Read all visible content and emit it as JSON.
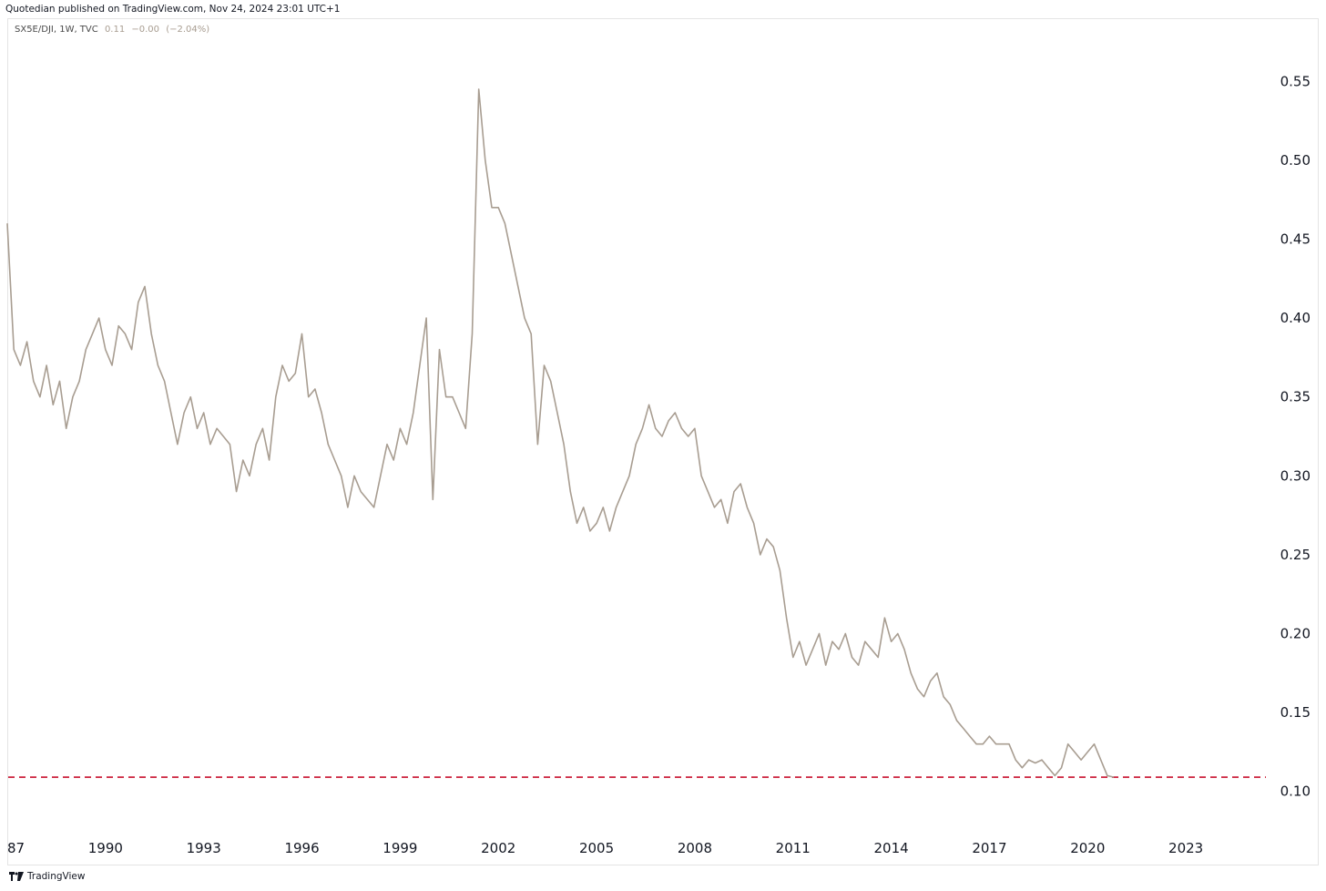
{
  "header": {
    "attribution": "Quotedian published on TradingView.com, Nov 24, 2024 23:01 UTC+1"
  },
  "legend": {
    "symbol": "SX5E/DJI, 1W, TVC",
    "last": "0.11",
    "change": "−0.00",
    "change_pct": "(−2.04%)"
  },
  "footer": {
    "brand": "TradingView"
  },
  "colors": {
    "line": "#a89d91",
    "support": "#c8102e",
    "text": "#131722"
  },
  "chart_data": {
    "type": "line",
    "title": "",
    "xlabel": "",
    "ylabel": "",
    "x_tick_labels": [
      "87",
      "1990",
      "1993",
      "1996",
      "1999",
      "2002",
      "2005",
      "2008",
      "2011",
      "2014",
      "2017",
      "2020",
      "2023"
    ],
    "y_tick_labels": [
      "0.55",
      "0.50",
      "0.45",
      "0.40",
      "0.35",
      "0.30",
      "0.25",
      "0.20",
      "0.15",
      "0.10"
    ],
    "xlim": [
      1987.0,
      2025.5
    ],
    "ylim": [
      0.075,
      0.59
    ],
    "grid": false,
    "legend_placement": "top-left",
    "series": [
      {
        "values": [
          [
            1987.0,
            0.46
          ],
          [
            1987.2,
            0.38
          ],
          [
            1987.4,
            0.37
          ],
          [
            1987.6,
            0.385
          ],
          [
            1987.8,
            0.36
          ],
          [
            1988.0,
            0.35
          ],
          [
            1988.2,
            0.37
          ],
          [
            1988.4,
            0.345
          ],
          [
            1988.6,
            0.36
          ],
          [
            1988.8,
            0.33
          ],
          [
            1989.0,
            0.35
          ],
          [
            1989.2,
            0.36
          ],
          [
            1989.4,
            0.38
          ],
          [
            1989.6,
            0.39
          ],
          [
            1989.8,
            0.4
          ],
          [
            1990.0,
            0.38
          ],
          [
            1990.2,
            0.37
          ],
          [
            1990.4,
            0.395
          ],
          [
            1990.6,
            0.39
          ],
          [
            1990.8,
            0.38
          ],
          [
            1991.0,
            0.41
          ],
          [
            1991.2,
            0.42
          ],
          [
            1991.4,
            0.39
          ],
          [
            1991.6,
            0.37
          ],
          [
            1991.8,
            0.36
          ],
          [
            1992.0,
            0.34
          ],
          [
            1992.2,
            0.32
          ],
          [
            1992.4,
            0.34
          ],
          [
            1992.6,
            0.35
          ],
          [
            1992.8,
            0.33
          ],
          [
            1993.0,
            0.34
          ],
          [
            1993.2,
            0.32
          ],
          [
            1993.4,
            0.33
          ],
          [
            1993.6,
            0.325
          ],
          [
            1993.8,
            0.32
          ],
          [
            1994.0,
            0.29
          ],
          [
            1994.2,
            0.31
          ],
          [
            1994.4,
            0.3
          ],
          [
            1994.6,
            0.32
          ],
          [
            1994.8,
            0.33
          ],
          [
            1995.0,
            0.31
          ],
          [
            1995.2,
            0.35
          ],
          [
            1995.4,
            0.37
          ],
          [
            1995.6,
            0.36
          ],
          [
            1995.8,
            0.365
          ],
          [
            1996.0,
            0.39
          ],
          [
            1996.2,
            0.35
          ],
          [
            1996.4,
            0.355
          ],
          [
            1996.6,
            0.34
          ],
          [
            1996.8,
            0.32
          ],
          [
            1997.0,
            0.31
          ],
          [
            1997.2,
            0.3
          ],
          [
            1997.4,
            0.28
          ],
          [
            1997.6,
            0.3
          ],
          [
            1997.8,
            0.29
          ],
          [
            1998.0,
            0.285
          ],
          [
            1998.2,
            0.28
          ],
          [
            1998.4,
            0.3
          ],
          [
            1998.6,
            0.32
          ],
          [
            1998.8,
            0.31
          ],
          [
            1999.0,
            0.33
          ],
          [
            1999.2,
            0.32
          ],
          [
            1999.4,
            0.34
          ],
          [
            1999.6,
            0.37
          ],
          [
            1999.8,
            0.4
          ],
          [
            2000.0,
            0.285
          ],
          [
            2000.2,
            0.38
          ],
          [
            2000.4,
            0.35
          ],
          [
            2000.6,
            0.35
          ],
          [
            2000.8,
            0.34
          ],
          [
            2001.0,
            0.33
          ],
          [
            2001.2,
            0.39
          ],
          [
            2001.4,
            0.545
          ],
          [
            2001.6,
            0.5
          ],
          [
            2001.8,
            0.47
          ],
          [
            2002.0,
            0.47
          ],
          [
            2002.2,
            0.46
          ],
          [
            2002.4,
            0.44
          ],
          [
            2002.6,
            0.42
          ],
          [
            2002.8,
            0.4
          ],
          [
            2003.0,
            0.39
          ],
          [
            2003.2,
            0.32
          ],
          [
            2003.4,
            0.37
          ],
          [
            2003.6,
            0.36
          ],
          [
            2003.8,
            0.34
          ],
          [
            2004.0,
            0.32
          ],
          [
            2004.2,
            0.29
          ],
          [
            2004.4,
            0.27
          ],
          [
            2004.6,
            0.28
          ],
          [
            2004.8,
            0.265
          ],
          [
            2005.0,
            0.27
          ],
          [
            2005.2,
            0.28
          ],
          [
            2005.4,
            0.265
          ],
          [
            2005.6,
            0.28
          ],
          [
            2005.8,
            0.29
          ],
          [
            2006.0,
            0.3
          ],
          [
            2006.2,
            0.32
          ],
          [
            2006.4,
            0.33
          ],
          [
            2006.6,
            0.345
          ],
          [
            2006.8,
            0.33
          ],
          [
            2007.0,
            0.325
          ],
          [
            2007.2,
            0.335
          ],
          [
            2007.4,
            0.34
          ],
          [
            2007.6,
            0.33
          ],
          [
            2007.8,
            0.325
          ],
          [
            2008.0,
            0.33
          ],
          [
            2008.2,
            0.3
          ],
          [
            2008.4,
            0.29
          ],
          [
            2008.6,
            0.28
          ],
          [
            2008.8,
            0.285
          ],
          [
            2009.0,
            0.27
          ],
          [
            2009.2,
            0.29
          ],
          [
            2009.4,
            0.295
          ],
          [
            2009.6,
            0.28
          ],
          [
            2009.8,
            0.27
          ],
          [
            2010.0,
            0.25
          ],
          [
            2010.2,
            0.26
          ],
          [
            2010.4,
            0.255
          ],
          [
            2010.6,
            0.24
          ],
          [
            2010.8,
            0.21
          ],
          [
            2011.0,
            0.185
          ],
          [
            2011.2,
            0.195
          ],
          [
            2011.4,
            0.18
          ],
          [
            2011.6,
            0.19
          ],
          [
            2011.8,
            0.2
          ],
          [
            2012.0,
            0.18
          ],
          [
            2012.2,
            0.195
          ],
          [
            2012.4,
            0.19
          ],
          [
            2012.6,
            0.2
          ],
          [
            2012.8,
            0.185
          ],
          [
            2013.0,
            0.18
          ],
          [
            2013.2,
            0.195
          ],
          [
            2013.4,
            0.19
          ],
          [
            2013.6,
            0.185
          ],
          [
            2013.8,
            0.21
          ],
          [
            2014.0,
            0.195
          ],
          [
            2014.2,
            0.2
          ],
          [
            2014.4,
            0.19
          ],
          [
            2014.6,
            0.175
          ],
          [
            2014.8,
            0.165
          ],
          [
            2015.0,
            0.16
          ],
          [
            2015.2,
            0.17
          ],
          [
            2015.4,
            0.175
          ],
          [
            2015.6,
            0.16
          ],
          [
            2015.8,
            0.155
          ],
          [
            2016.0,
            0.145
          ],
          [
            2016.2,
            0.14
          ],
          [
            2016.4,
            0.135
          ],
          [
            2016.6,
            0.13
          ],
          [
            2016.8,
            0.13
          ],
          [
            2017.0,
            0.135
          ],
          [
            2017.2,
            0.13
          ],
          [
            2017.4,
            0.13
          ],
          [
            2017.6,
            0.13
          ],
          [
            2017.8,
            0.12
          ],
          [
            2018.0,
            0.115
          ],
          [
            2018.2,
            0.12
          ],
          [
            2018.4,
            0.118
          ],
          [
            2018.6,
            0.12
          ],
          [
            2018.8,
            0.115
          ],
          [
            2019.0,
            0.11
          ],
          [
            2019.2,
            0.115
          ],
          [
            2019.4,
            0.13
          ],
          [
            2019.6,
            0.125
          ],
          [
            2019.8,
            0.12
          ],
          [
            2020.0,
            0.125
          ],
          [
            2020.2,
            0.13
          ],
          [
            2020.4,
            0.12
          ],
          [
            2020.6,
            0.11
          ],
          [
            2020.8,
            0.109
          ]
        ]
      }
    ],
    "support_level": 0.109
  }
}
